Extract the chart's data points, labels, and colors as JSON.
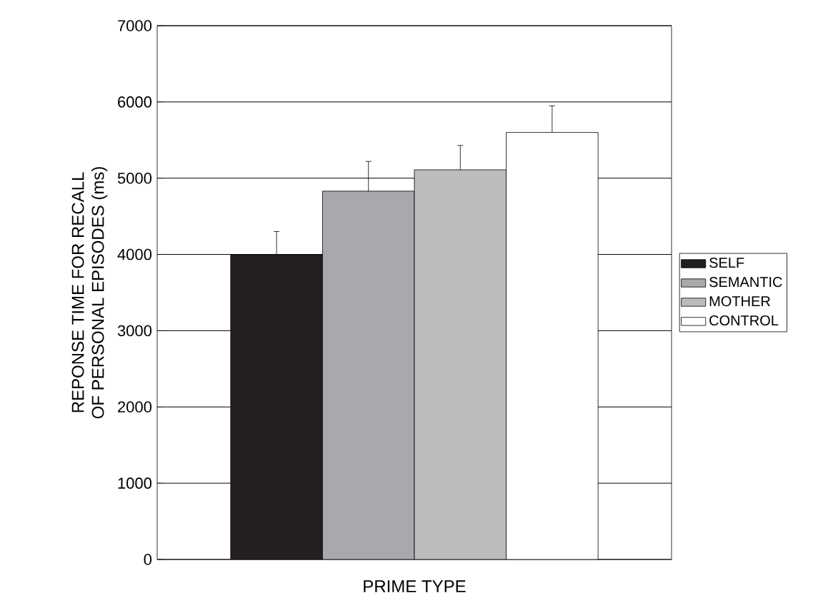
{
  "chart_data": {
    "type": "bar",
    "xlabel": "PRIME TYPE",
    "ylabel": "REPONSE TIME FOR RECALL\nOF PERSONAL EPISODES (ms)",
    "categories": [
      null
    ],
    "series": [
      {
        "name": "SELF",
        "color": "#231f20",
        "values": [
          4000
        ],
        "errors": [
          300
        ]
      },
      {
        "name": "SEMANTIC",
        "color": "#a7a9ac",
        "values": [
          4830
        ],
        "errors": [
          390
        ]
      },
      {
        "name": "MOTHER",
        "color": "#bcbcbc",
        "values": [
          5110
        ],
        "errors": [
          320
        ]
      },
      {
        "name": "CONTROL",
        "color": "#ffffff",
        "values": [
          5600
        ],
        "errors": [
          350
        ]
      }
    ],
    "ylim": [
      0,
      7000
    ],
    "yticks": [
      0,
      1000,
      2000,
      3000,
      4000,
      5000,
      6000,
      7000
    ],
    "grid": "y",
    "legend": "right"
  }
}
